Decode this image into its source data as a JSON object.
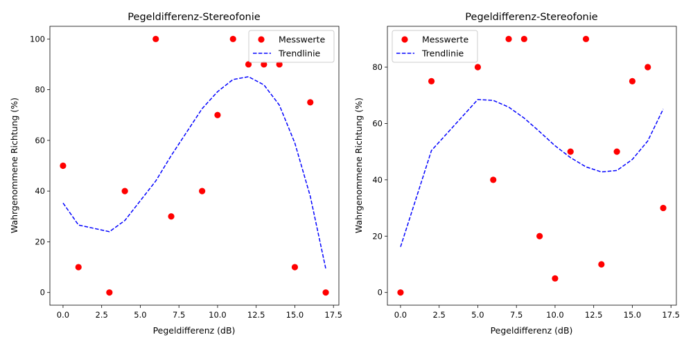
{
  "chart_data": [
    {
      "type": "scatter",
      "title": "Pegeldifferenz-Stereofonie",
      "xlabel": "Pegeldifferenz (dB)",
      "ylabel": "Wahrgenommene Richtung (%)",
      "xlim": [
        -0.85,
        17.85
      ],
      "ylim": [
        -5,
        105
      ],
      "xticks": [
        0.0,
        2.5,
        5.0,
        7.5,
        10.0,
        12.5,
        15.0,
        17.5
      ],
      "xtick_labels": [
        "0.0",
        "2.5",
        "5.0",
        "7.5",
        "10.0",
        "12.5",
        "15.0",
        "17.5"
      ],
      "yticks": [
        0,
        20,
        40,
        60,
        80,
        100
      ],
      "ytick_labels": [
        "0",
        "20",
        "40",
        "60",
        "80",
        "100"
      ],
      "legend_position": "top-right",
      "grid": false,
      "series": [
        {
          "name": "Messwerte",
          "kind": "scatter",
          "color": "#ff0000",
          "points": [
            [
              0,
              50
            ],
            [
              1,
              10
            ],
            [
              3,
              0
            ],
            [
              4,
              40
            ],
            [
              6,
              100
            ],
            [
              7,
              30
            ],
            [
              9,
              40
            ],
            [
              10,
              70
            ],
            [
              11,
              100
            ],
            [
              12,
              90
            ],
            [
              13,
              90
            ],
            [
              14,
              90
            ],
            [
              15,
              10
            ],
            [
              16,
              75
            ],
            [
              17,
              0
            ]
          ]
        },
        {
          "name": "Trendlinie",
          "kind": "line",
          "style": "dashed",
          "color": "#0000ff",
          "points": [
            [
              0,
              35.3
            ],
            [
              1,
              26.6
            ],
            [
              3,
              24
            ],
            [
              4,
              28.4
            ],
            [
              6,
              44
            ],
            [
              7,
              54
            ],
            [
              9,
              72.5
            ],
            [
              10,
              79.2
            ],
            [
              11,
              84
            ],
            [
              12,
              85.1
            ],
            [
              13,
              81.9
            ],
            [
              14,
              73.9
            ],
            [
              15,
              59
            ],
            [
              16,
              38
            ],
            [
              17,
              9.5
            ]
          ]
        }
      ]
    },
    {
      "type": "scatter",
      "title": "Pegeldifferenz-Stereofonie",
      "xlabel": "Pegeldifferenz (dB)",
      "ylabel": "Wahrgenommene Richtung (%)",
      "xlim": [
        -0.85,
        17.85
      ],
      "ylim": [
        -4.5,
        94.5
      ],
      "xticks": [
        0.0,
        2.5,
        5.0,
        7.5,
        10.0,
        12.5,
        15.0,
        17.5
      ],
      "xtick_labels": [
        "0.0",
        "2.5",
        "5.0",
        "7.5",
        "10.0",
        "12.5",
        "15.0",
        "17.5"
      ],
      "yticks": [
        0,
        20,
        40,
        60,
        80
      ],
      "ytick_labels": [
        "0",
        "20",
        "40",
        "60",
        "80"
      ],
      "legend_position": "top-left",
      "grid": false,
      "series": [
        {
          "name": "Messwerte",
          "kind": "scatter",
          "color": "#ff0000",
          "points": [
            [
              0,
              0
            ],
            [
              2,
              75
            ],
            [
              5,
              80
            ],
            [
              6,
              40
            ],
            [
              7,
              90
            ],
            [
              8,
              90
            ],
            [
              9,
              20
            ],
            [
              10,
              5
            ],
            [
              11,
              50
            ],
            [
              12,
              90
            ],
            [
              13,
              10
            ],
            [
              14,
              50
            ],
            [
              15,
              75
            ],
            [
              16,
              80
            ],
            [
              17,
              30
            ]
          ]
        },
        {
          "name": "Trendlinie",
          "kind": "line",
          "style": "dashed",
          "color": "#0000ff",
          "points": [
            [
              0,
              16.2
            ],
            [
              2,
              50.4
            ],
            [
              5,
              68.5
            ],
            [
              6,
              68.2
            ],
            [
              7,
              65.8
            ],
            [
              8,
              61.9
            ],
            [
              9,
              57.1
            ],
            [
              10,
              52.1
            ],
            [
              11,
              47.9
            ],
            [
              12,
              44.6
            ],
            [
              13,
              42.8
            ],
            [
              14,
              43.3
            ],
            [
              15,
              47.2
            ],
            [
              16,
              53.8
            ],
            [
              17,
              65.1
            ]
          ]
        }
      ]
    }
  ]
}
